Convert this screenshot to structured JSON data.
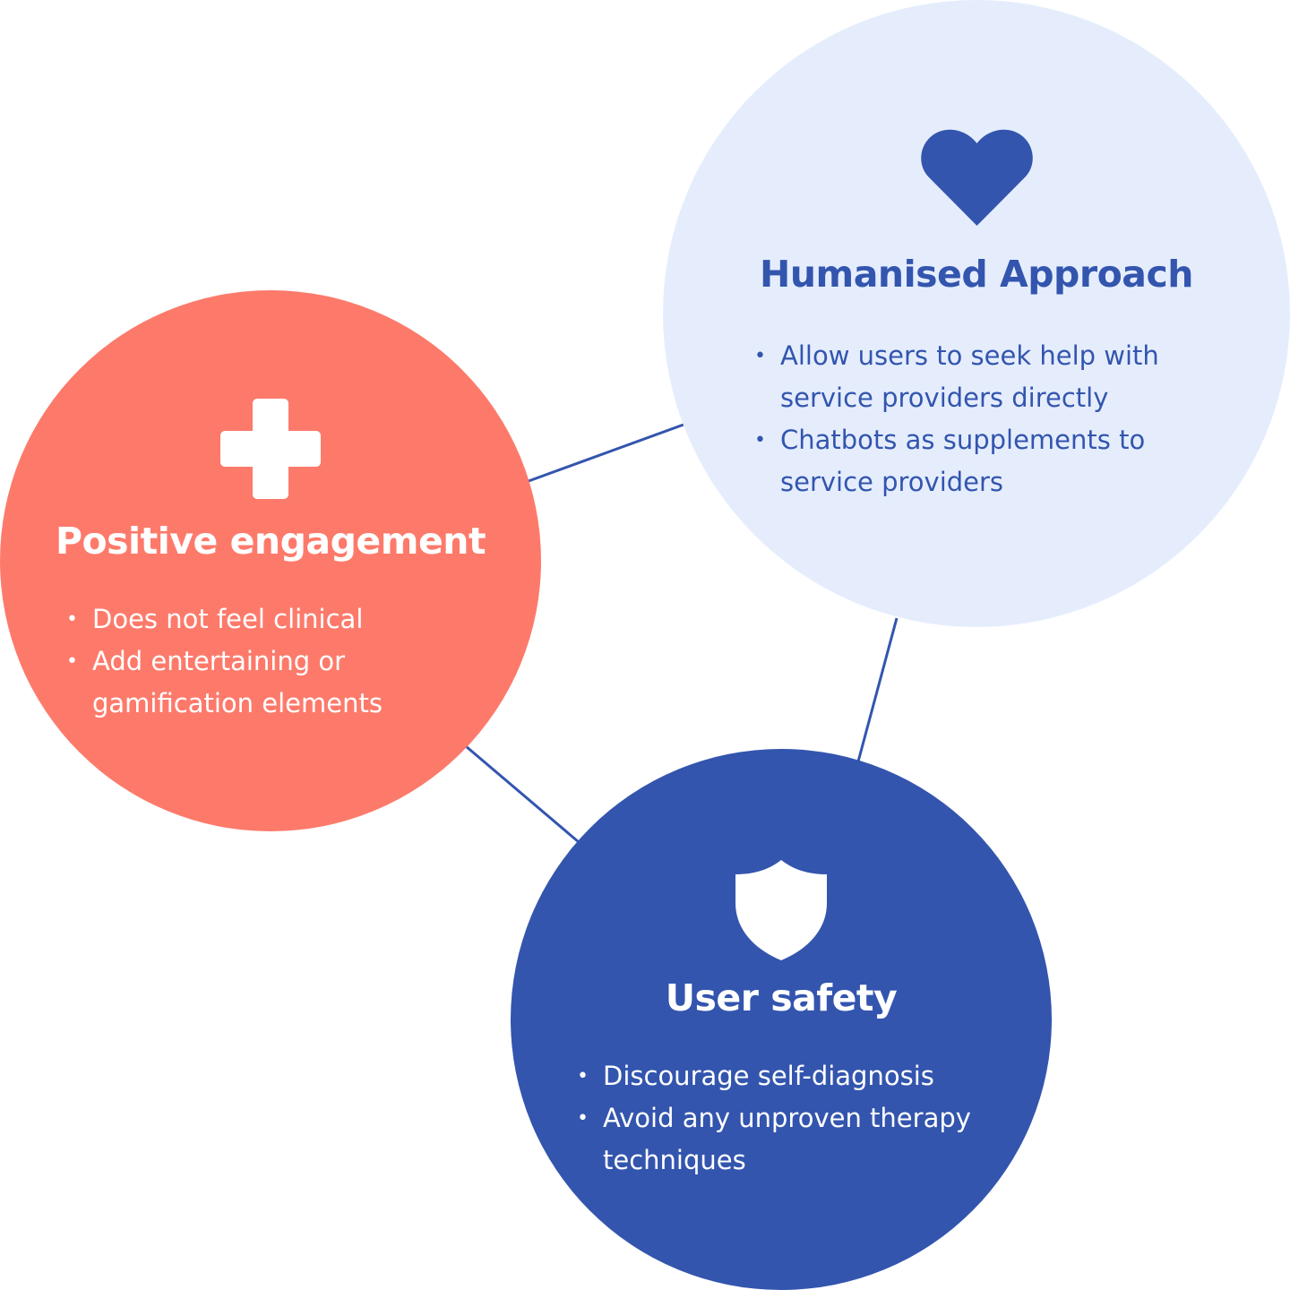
{
  "colors": {
    "coral": "#fd7a6b",
    "light_blue": "#e5edfd",
    "navy": "#3355ae",
    "white": "#ffffff",
    "connector": "#3355ae"
  },
  "nodes": {
    "engagement": {
      "icon": "plus-icon",
      "title": "Positive engagement",
      "bullets": [
        "Does not feel clinical",
        "Add entertaining or",
        "gamification elements"
      ]
    },
    "humanised": {
      "icon": "heart-icon",
      "title": "Humanised Approach",
      "bullets": [
        "Allow users to seek help with",
        "service providers directly",
        "Chatbots as supplements to",
        "service providers"
      ]
    },
    "safety": {
      "icon": "shield-icon",
      "title": "User safety",
      "bullets": [
        "Discourage self-diagnosis",
        "Avoid any unproven therapy",
        "techniques"
      ]
    }
  },
  "bullet_glyph": "•"
}
